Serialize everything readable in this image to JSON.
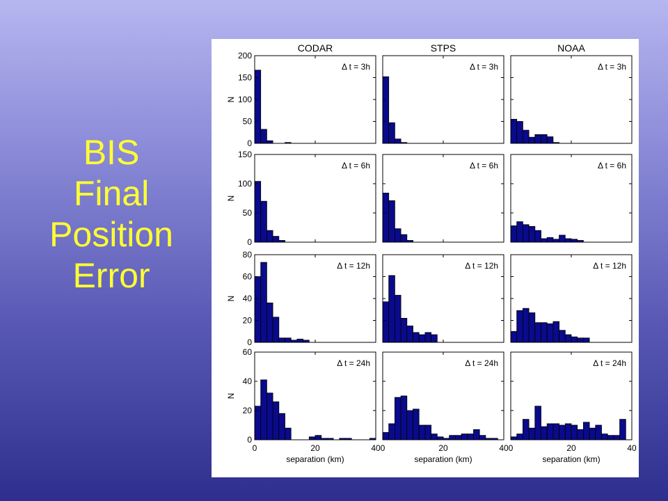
{
  "slide": {
    "title_lines": [
      "BIS",
      "Final",
      "Position",
      "Error"
    ]
  },
  "colors": {
    "bar_fill": "#0a0a8c",
    "bar_stroke": "#000000",
    "title_text": "#ffff33",
    "background_top": "#b6b6f0",
    "background_bottom": "#2e2e8e"
  },
  "chart_data": {
    "type": "bar",
    "layout": "small-multiples grid, 4 rows x 3 columns, histograms",
    "column_titles": [
      "CODAR",
      "STPS",
      "NOAA"
    ],
    "ylabel": "N",
    "xlabel": "separation (km)",
    "xlim": [
      0,
      40
    ],
    "xticks": [
      0,
      20,
      40
    ],
    "bin_edges": [
      0,
      2,
      4,
      6,
      8,
      10,
      12,
      14,
      16,
      18,
      20,
      22,
      24,
      26,
      28,
      30,
      32,
      34,
      36,
      38,
      40
    ],
    "grid": false,
    "rows": [
      {
        "annotation": "Δ t = 3h",
        "ylim": [
          0,
          200
        ],
        "yticks": [
          0,
          50,
          100,
          150,
          200
        ],
        "panels": [
          {
            "model": "CODAR",
            "values": [
              167,
              32,
              6,
              0,
              0,
              2,
              0,
              0,
              0,
              0,
              0,
              0,
              0,
              0,
              0,
              0,
              0,
              0,
              0,
              0
            ]
          },
          {
            "model": "STPS",
            "values": [
              152,
              47,
              10,
              2,
              0,
              0,
              0,
              0,
              0,
              0,
              0,
              0,
              0,
              0,
              0,
              0,
              0,
              0,
              0,
              0
            ]
          },
          {
            "model": "NOAA",
            "values": [
              55,
              50,
              30,
              14,
              20,
              20,
              15,
              2,
              0,
              0,
              0,
              0,
              0,
              0,
              0,
              0,
              0,
              0,
              0,
              0
            ]
          }
        ]
      },
      {
        "annotation": "Δ t = 6h",
        "ylim": [
          0,
          150
        ],
        "yticks": [
          0,
          50,
          100,
          150
        ],
        "panels": [
          {
            "model": "CODAR",
            "values": [
              104,
              70,
              20,
              10,
              3,
              0,
              0,
              0,
              0,
              0,
              0,
              0,
              0,
              0,
              0,
              0,
              0,
              0,
              0,
              0
            ]
          },
          {
            "model": "STPS",
            "values": [
              84,
              71,
              23,
              13,
              3,
              0,
              0,
              0,
              0,
              0,
              0,
              0,
              0,
              0,
              0,
              0,
              0,
              0,
              0,
              0
            ]
          },
          {
            "model": "NOAA",
            "values": [
              28,
              35,
              30,
              27,
              20,
              6,
              8,
              5,
              12,
              6,
              5,
              3,
              0,
              0,
              0,
              0,
              0,
              0,
              0,
              0
            ]
          }
        ]
      },
      {
        "annotation": "Δ t = 12h",
        "ylim": [
          0,
          80
        ],
        "yticks": [
          0,
          20,
          40,
          60,
          80
        ],
        "panels": [
          {
            "model": "CODAR",
            "values": [
              60,
              73,
              36,
              23,
              4,
              4,
              2,
              3,
              2,
              0,
              0,
              0,
              0,
              0,
              0,
              0,
              0,
              0,
              0,
              0
            ]
          },
          {
            "model": "STPS",
            "values": [
              37,
              61,
              43,
              22,
              15,
              9,
              7,
              9,
              7,
              0,
              0,
              0,
              0,
              0,
              0,
              0,
              0,
              0,
              0,
              0
            ]
          },
          {
            "model": "NOAA",
            "values": [
              10,
              29,
              31,
              27,
              18,
              18,
              17,
              19,
              11,
              7,
              5,
              4,
              4,
              0,
              0,
              0,
              0,
              0,
              0,
              0
            ]
          }
        ]
      },
      {
        "annotation": "Δ t = 24h",
        "ylim": [
          0,
          60
        ],
        "yticks": [
          0,
          20,
          40,
          60
        ],
        "panels": [
          {
            "model": "CODAR",
            "values": [
              23,
              41,
              32,
              26,
              18,
              8,
              0,
              0,
              0,
              2,
              3,
              1,
              1,
              0,
              1,
              1,
              0,
              0,
              0,
              1
            ]
          },
          {
            "model": "STPS",
            "values": [
              5,
              11,
              29,
              30,
              20,
              21,
              10,
              10,
              4,
              2,
              1,
              3,
              3,
              4,
              4,
              7,
              3,
              1,
              1,
              0
            ]
          },
          {
            "model": "NOAA",
            "values": [
              2,
              4,
              14,
              8,
              23,
              9,
              11,
              11,
              10,
              11,
              10,
              7,
              12,
              8,
              10,
              4,
              3,
              3,
              14,
              0
            ]
          }
        ]
      }
    ]
  }
}
